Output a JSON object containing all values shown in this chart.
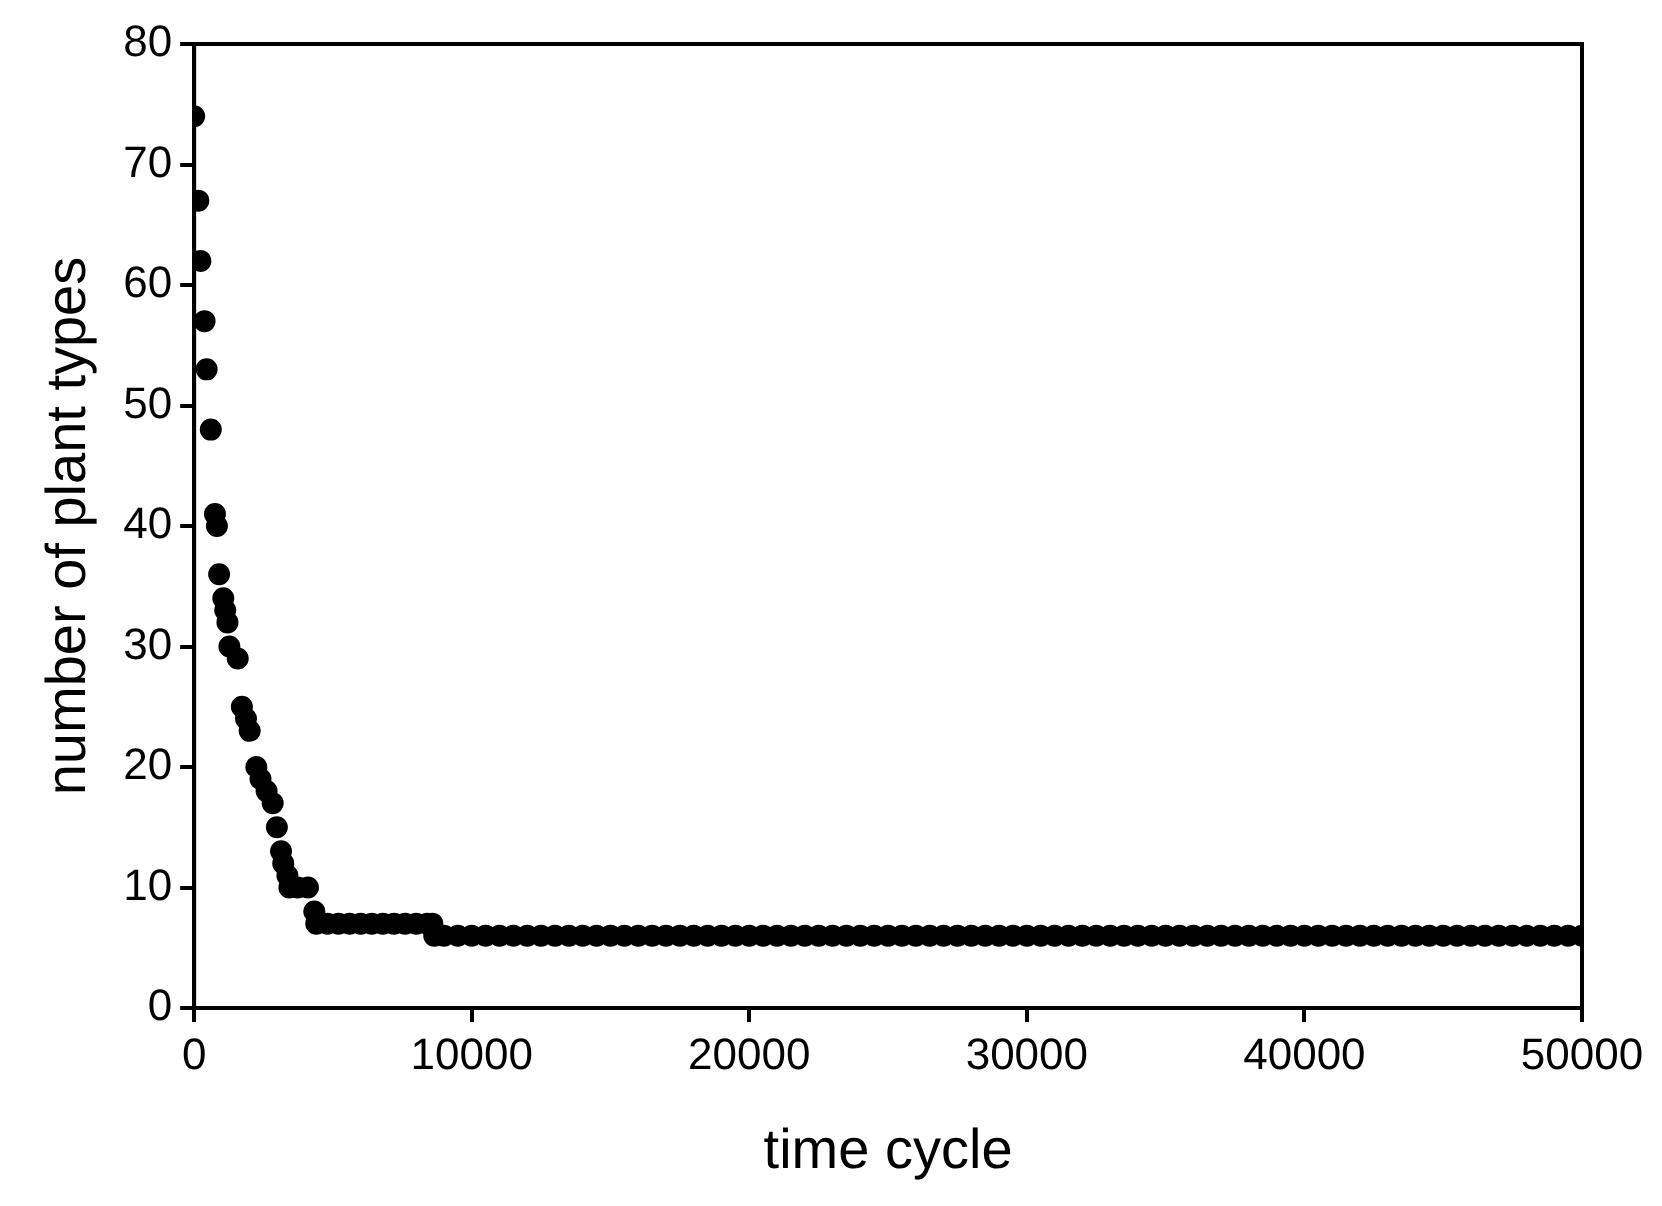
{
  "chart_data": {
    "type": "scatter",
    "xlabel": "time cycle",
    "ylabel": "number of plant types",
    "marker": "circle",
    "grid": false,
    "legend": false,
    "xlim": [
      0,
      50000
    ],
    "xticks": [
      0,
      10000,
      20000,
      30000,
      40000,
      50000
    ],
    "ylim": [
      0,
      80
    ],
    "yticks": [
      0,
      10,
      20,
      30,
      40,
      50,
      60,
      70,
      80
    ],
    "series": [
      {
        "color": "#000000",
        "x": [
          0,
          150,
          225,
          375,
          450,
          600,
          750,
          820,
          900,
          1050,
          1120,
          1200,
          1270,
          1570,
          1720,
          1870,
          2000,
          2240,
          2390,
          2610,
          2830,
          2980,
          3130,
          3210,
          3360,
          3430,
          3730,
          4100,
          4330,
          4400,
          4800,
          5200,
          5600,
          6000,
          6400,
          6800,
          7200,
          7600,
          8000,
          8400,
          8580,
          8650,
          9000,
          9500,
          10000,
          10500,
          11000,
          11500,
          12000,
          12500,
          13000,
          13500,
          14000,
          14500,
          15000,
          15500,
          16000,
          16500,
          17000,
          17500,
          18000,
          18500,
          19000,
          19500,
          20000,
          20500,
          21000,
          21500,
          22000,
          22500,
          23000,
          23500,
          24000,
          24500,
          25000,
          25500,
          26000,
          26500,
          27000,
          27500,
          28000,
          28500,
          29000,
          29500,
          30000,
          30500,
          31000,
          31500,
          32000,
          32500,
          33000,
          33500,
          34000,
          34500,
          35000,
          35500,
          36000,
          36500,
          37000,
          37500,
          38000,
          38500,
          39000,
          39500,
          40000,
          40500,
          41000,
          41500,
          42000,
          42500,
          43000,
          43500,
          44000,
          44500,
          45000,
          45500,
          46000,
          46500,
          47000,
          47500,
          48000,
          48500,
          49000,
          49500,
          50000
        ],
        "values": [
          74,
          67,
          62,
          57,
          53,
          48,
          41,
          40,
          36,
          34,
          33,
          32,
          30,
          29,
          25,
          24,
          23,
          20,
          19,
          18,
          17,
          15,
          13,
          12,
          11,
          10,
          10,
          10,
          8,
          7,
          7,
          7,
          7,
          7,
          7,
          7,
          7,
          7,
          7,
          7,
          7,
          6,
          6,
          6,
          6,
          6,
          6,
          6,
          6,
          6,
          6,
          6,
          6,
          6,
          6,
          6,
          6,
          6,
          6,
          6,
          6,
          6,
          6,
          6,
          6,
          6,
          6,
          6,
          6,
          6,
          6,
          6,
          6,
          6,
          6,
          6,
          6,
          6,
          6,
          6,
          6,
          6,
          6,
          6,
          6,
          6,
          6,
          6,
          6,
          6,
          6,
          6,
          6,
          6,
          6,
          6,
          6,
          6,
          6,
          6,
          6,
          6,
          6,
          6,
          6,
          6,
          6,
          6,
          6,
          6,
          6,
          6,
          6,
          6,
          6,
          6,
          6,
          6,
          6,
          6,
          6,
          6,
          6,
          6,
          6
        ]
      }
    ]
  }
}
